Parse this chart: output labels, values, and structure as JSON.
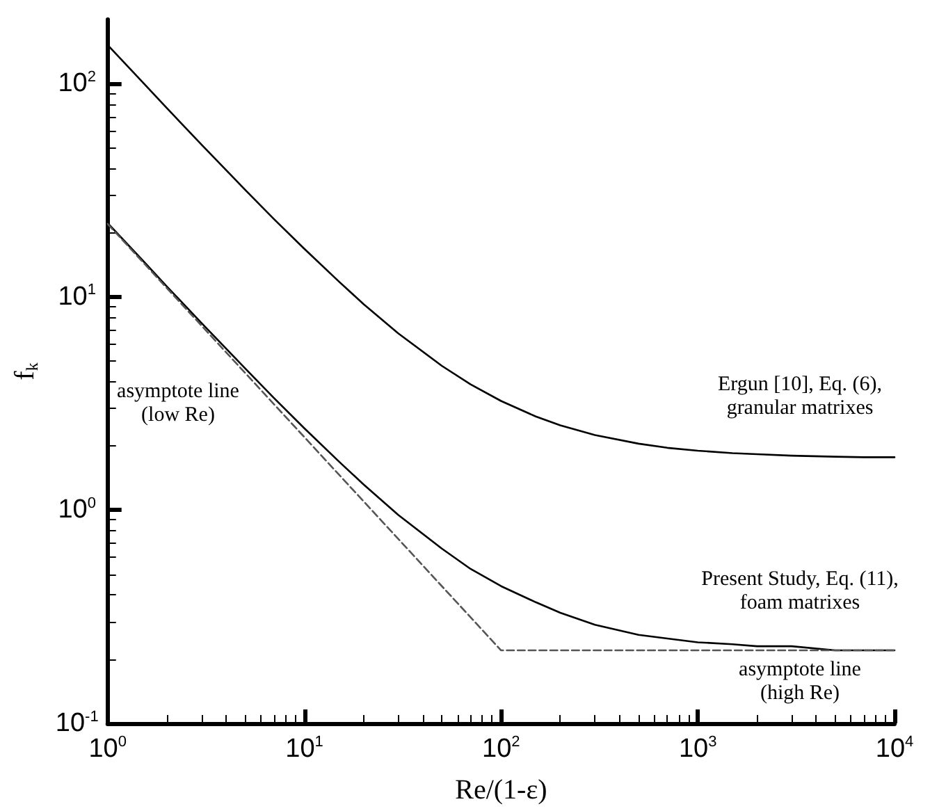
{
  "chart_data": {
    "type": "line",
    "xlabel": "Re/(1-ε)",
    "ylabel": "f$_{k}$",
    "log": "xy",
    "grid": false,
    "marker": "none",
    "xlim": [
      1,
      10000
    ],
    "ylim": [
      0.1,
      200
    ],
    "xticks": [
      {
        "value": 1,
        "label": "10$^{0}$"
      },
      {
        "value": 10,
        "label": "10$^{1}$"
      },
      {
        "value": 100,
        "label": "10$^{2}$"
      },
      {
        "value": 1000,
        "label": "10$^{3}$"
      },
      {
        "value": 10000,
        "label": "10$^{4}$"
      }
    ],
    "yticks": [
      {
        "value": 0.1,
        "label": "10$^{-1}$"
      },
      {
        "value": 1,
        "label": "10$^{0}$"
      },
      {
        "value": 10,
        "label": "10$^{1}$"
      },
      {
        "value": 100,
        "label": "10$^{2}$"
      }
    ],
    "series": [
      {
        "color": "#000000",
        "line_style": "solid",
        "x": [
          1,
          1.5,
          2,
          3,
          5,
          7,
          10,
          15,
          20,
          30,
          50,
          70,
          100,
          150,
          200,
          300,
          500,
          700,
          1000,
          1500,
          2000,
          3000,
          5000,
          7000,
          10000
        ],
        "values": [
          152,
          102,
          76.8,
          51.8,
          31.8,
          23.2,
          16.8,
          11.8,
          9.25,
          6.75,
          4.75,
          3.89,
          3.25,
          2.75,
          2.5,
          2.25,
          2.05,
          1.96,
          1.9,
          1.85,
          1.83,
          1.8,
          1.78,
          1.77,
          1.77
        ]
      },
      {
        "color": "#000000",
        "line_style": "solid",
        "x": [
          1,
          1.5,
          2,
          3,
          5,
          7,
          10,
          15,
          20,
          30,
          50,
          70,
          100,
          150,
          200,
          300,
          500,
          700,
          1000,
          1500,
          2000,
          3000,
          5000,
          7000,
          10000
        ],
        "values": [
          22.2,
          14.9,
          11.2,
          7.55,
          4.62,
          3.36,
          2.42,
          1.69,
          1.32,
          0.95,
          0.66,
          0.53,
          0.44,
          0.37,
          0.33,
          0.29,
          0.26,
          0.25,
          0.24,
          0.235,
          0.23,
          0.23,
          0.22,
          0.22,
          0.22
        ]
      },
      {
        "color": "#555555",
        "line_style": "dashed",
        "x": [
          1,
          100,
          10000
        ],
        "values": [
          22,
          0.22,
          0.22
        ]
      }
    ],
    "annotations": [
      "asymptote line\n(low Re)",
      "Ergun [10], Eq. (6),\ngranular matrixes",
      "Present Study, Eq. (11),\nfoam matrixes",
      "asymptote line\n(high Re)"
    ]
  }
}
